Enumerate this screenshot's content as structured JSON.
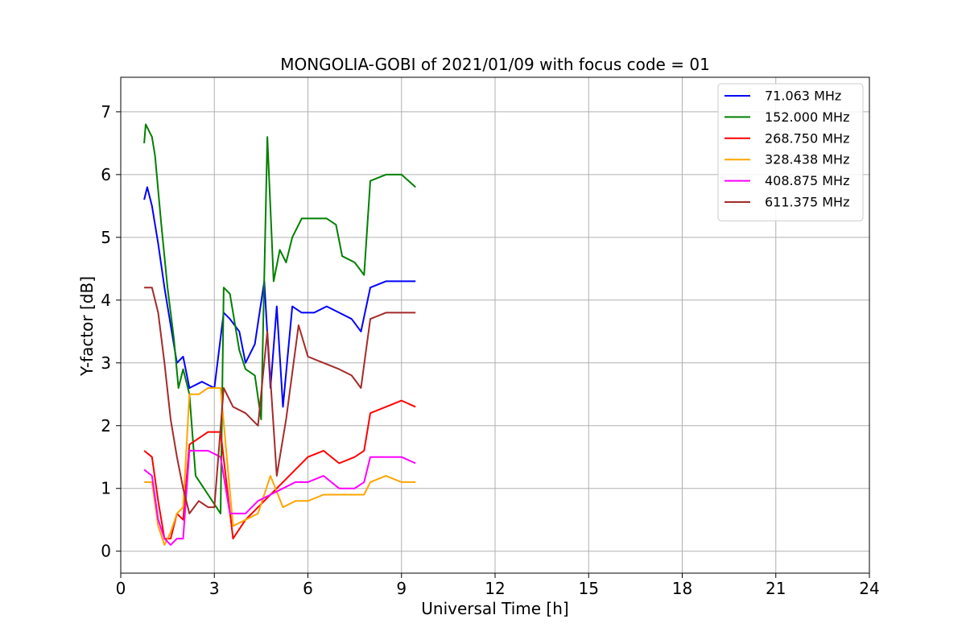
{
  "chart_data": {
    "type": "line",
    "title": "MONGOLIA-GOBI of 2021/01/09 with focus code = 01",
    "xlabel": "Universal Time [h]",
    "ylabel": "Y-factor [dB]",
    "xlim": [
      0,
      24
    ],
    "ylim": [
      -0.35,
      7.55
    ],
    "xticks": [
      0,
      3,
      6,
      9,
      12,
      15,
      18,
      21,
      24
    ],
    "yticks": [
      0,
      1,
      2,
      3,
      4,
      5,
      6,
      7
    ],
    "grid": true,
    "legend_position": "top-right",
    "series": [
      {
        "name": " 71.063 MHz",
        "color": "#0000ff",
        "x": [
          0.75,
          0.85,
          1.0,
          1.2,
          1.4,
          1.6,
          1.8,
          2.0,
          2.2,
          2.6,
          3.0,
          3.3,
          3.5,
          3.8,
          4.0,
          4.3,
          4.6,
          4.8,
          5.0,
          5.2,
          5.5,
          5.8,
          6.2,
          6.6,
          7.0,
          7.4,
          7.7,
          8.0,
          8.5,
          9.0,
          9.45
        ],
        "y": [
          5.6,
          5.8,
          5.5,
          4.9,
          4.2,
          3.6,
          3.0,
          3.1,
          2.6,
          2.7,
          2.6,
          3.8,
          3.7,
          3.5,
          3.0,
          3.3,
          4.3,
          2.6,
          3.9,
          2.3,
          3.9,
          3.8,
          3.8,
          3.9,
          3.8,
          3.7,
          3.5,
          4.2,
          4.3,
          4.3,
          4.3
        ]
      },
      {
        "name": "152.000 MHz",
        "color": "#008000",
        "x": [
          0.75,
          0.8,
          0.9,
          1.0,
          1.1,
          1.3,
          1.5,
          1.7,
          1.85,
          2.0,
          2.2,
          2.4,
          2.8,
          3.2,
          3.3,
          3.5,
          3.8,
          4.0,
          4.3,
          4.5,
          4.7,
          4.9,
          5.1,
          5.3,
          5.5,
          5.8,
          6.2,
          6.6,
          6.9,
          7.1,
          7.5,
          7.8,
          8.0,
          8.5,
          9.0,
          9.45
        ],
        "y": [
          6.5,
          6.8,
          6.7,
          6.6,
          6.3,
          5.2,
          4.2,
          3.4,
          2.6,
          2.9,
          2.5,
          1.2,
          0.9,
          0.6,
          4.2,
          4.1,
          3.2,
          2.9,
          2.8,
          2.1,
          6.6,
          4.3,
          4.8,
          4.6,
          5.0,
          5.3,
          5.3,
          5.3,
          5.2,
          4.7,
          4.6,
          4.4,
          5.9,
          6.0,
          6.0,
          5.8
        ]
      },
      {
        "name": "268.750 MHz",
        "color": "#ff0000",
        "x": [
          0.75,
          1.0,
          1.2,
          1.4,
          1.6,
          1.8,
          2.0,
          2.2,
          2.5,
          2.8,
          3.2,
          3.6,
          4.0,
          4.4,
          4.8,
          5.2,
          5.6,
          6.0,
          6.5,
          7.0,
          7.5,
          7.8,
          8.0,
          8.5,
          9.0,
          9.45
        ],
        "y": [
          1.6,
          1.5,
          0.8,
          0.2,
          0.2,
          0.6,
          0.5,
          1.7,
          1.8,
          1.9,
          1.9,
          0.2,
          0.5,
          0.7,
          0.9,
          1.1,
          1.3,
          1.5,
          1.6,
          1.4,
          1.5,
          1.6,
          2.2,
          2.3,
          2.4,
          2.3
        ]
      },
      {
        "name": "328.438 MHz",
        "color": "#ffa500",
        "x": [
          0.75,
          1.0,
          1.2,
          1.4,
          1.6,
          1.8,
          2.0,
          2.2,
          2.5,
          2.8,
          3.2,
          3.6,
          4.0,
          4.4,
          4.8,
          5.2,
          5.6,
          6.0,
          6.5,
          7.0,
          7.5,
          7.8,
          8.0,
          8.5,
          9.0,
          9.45
        ],
        "y": [
          1.1,
          1.1,
          0.4,
          0.1,
          0.3,
          0.6,
          0.7,
          2.5,
          2.5,
          2.6,
          2.6,
          0.4,
          0.5,
          0.6,
          1.2,
          0.7,
          0.8,
          0.8,
          0.9,
          0.9,
          0.9,
          0.9,
          1.1,
          1.2,
          1.1,
          1.1
        ]
      },
      {
        "name": "408.875 MHz",
        "color": "#ff00ff",
        "x": [
          0.75,
          1.0,
          1.2,
          1.4,
          1.6,
          1.8,
          2.0,
          2.2,
          2.5,
          2.8,
          3.2,
          3.5,
          4.0,
          4.4,
          4.8,
          5.2,
          5.6,
          6.0,
          6.5,
          7.0,
          7.5,
          7.8,
          8.0,
          8.5,
          9.0,
          9.45
        ],
        "y": [
          1.3,
          1.2,
          0.5,
          0.2,
          0.1,
          0.2,
          0.2,
          1.6,
          1.6,
          1.6,
          1.5,
          0.6,
          0.6,
          0.8,
          0.9,
          1.0,
          1.1,
          1.1,
          1.2,
          1.0,
          1.0,
          1.1,
          1.5,
          1.5,
          1.5,
          1.4
        ]
      },
      {
        "name": "611.375 MHz",
        "color": "#a52a2a",
        "x": [
          0.75,
          1.0,
          1.2,
          1.4,
          1.6,
          1.8,
          2.0,
          2.2,
          2.5,
          2.8,
          3.0,
          3.3,
          3.6,
          4.0,
          4.4,
          4.7,
          5.0,
          5.3,
          5.7,
          6.0,
          6.5,
          7.0,
          7.4,
          7.7,
          8.0,
          8.5,
          9.0,
          9.45
        ],
        "y": [
          4.2,
          4.2,
          3.8,
          3.0,
          2.1,
          1.5,
          1.0,
          0.6,
          0.8,
          0.7,
          0.7,
          2.6,
          2.3,
          2.2,
          2.0,
          3.5,
          1.2,
          2.1,
          3.6,
          3.1,
          3.0,
          2.9,
          2.8,
          2.6,
          3.7,
          3.8,
          3.8,
          3.8
        ]
      }
    ]
  }
}
